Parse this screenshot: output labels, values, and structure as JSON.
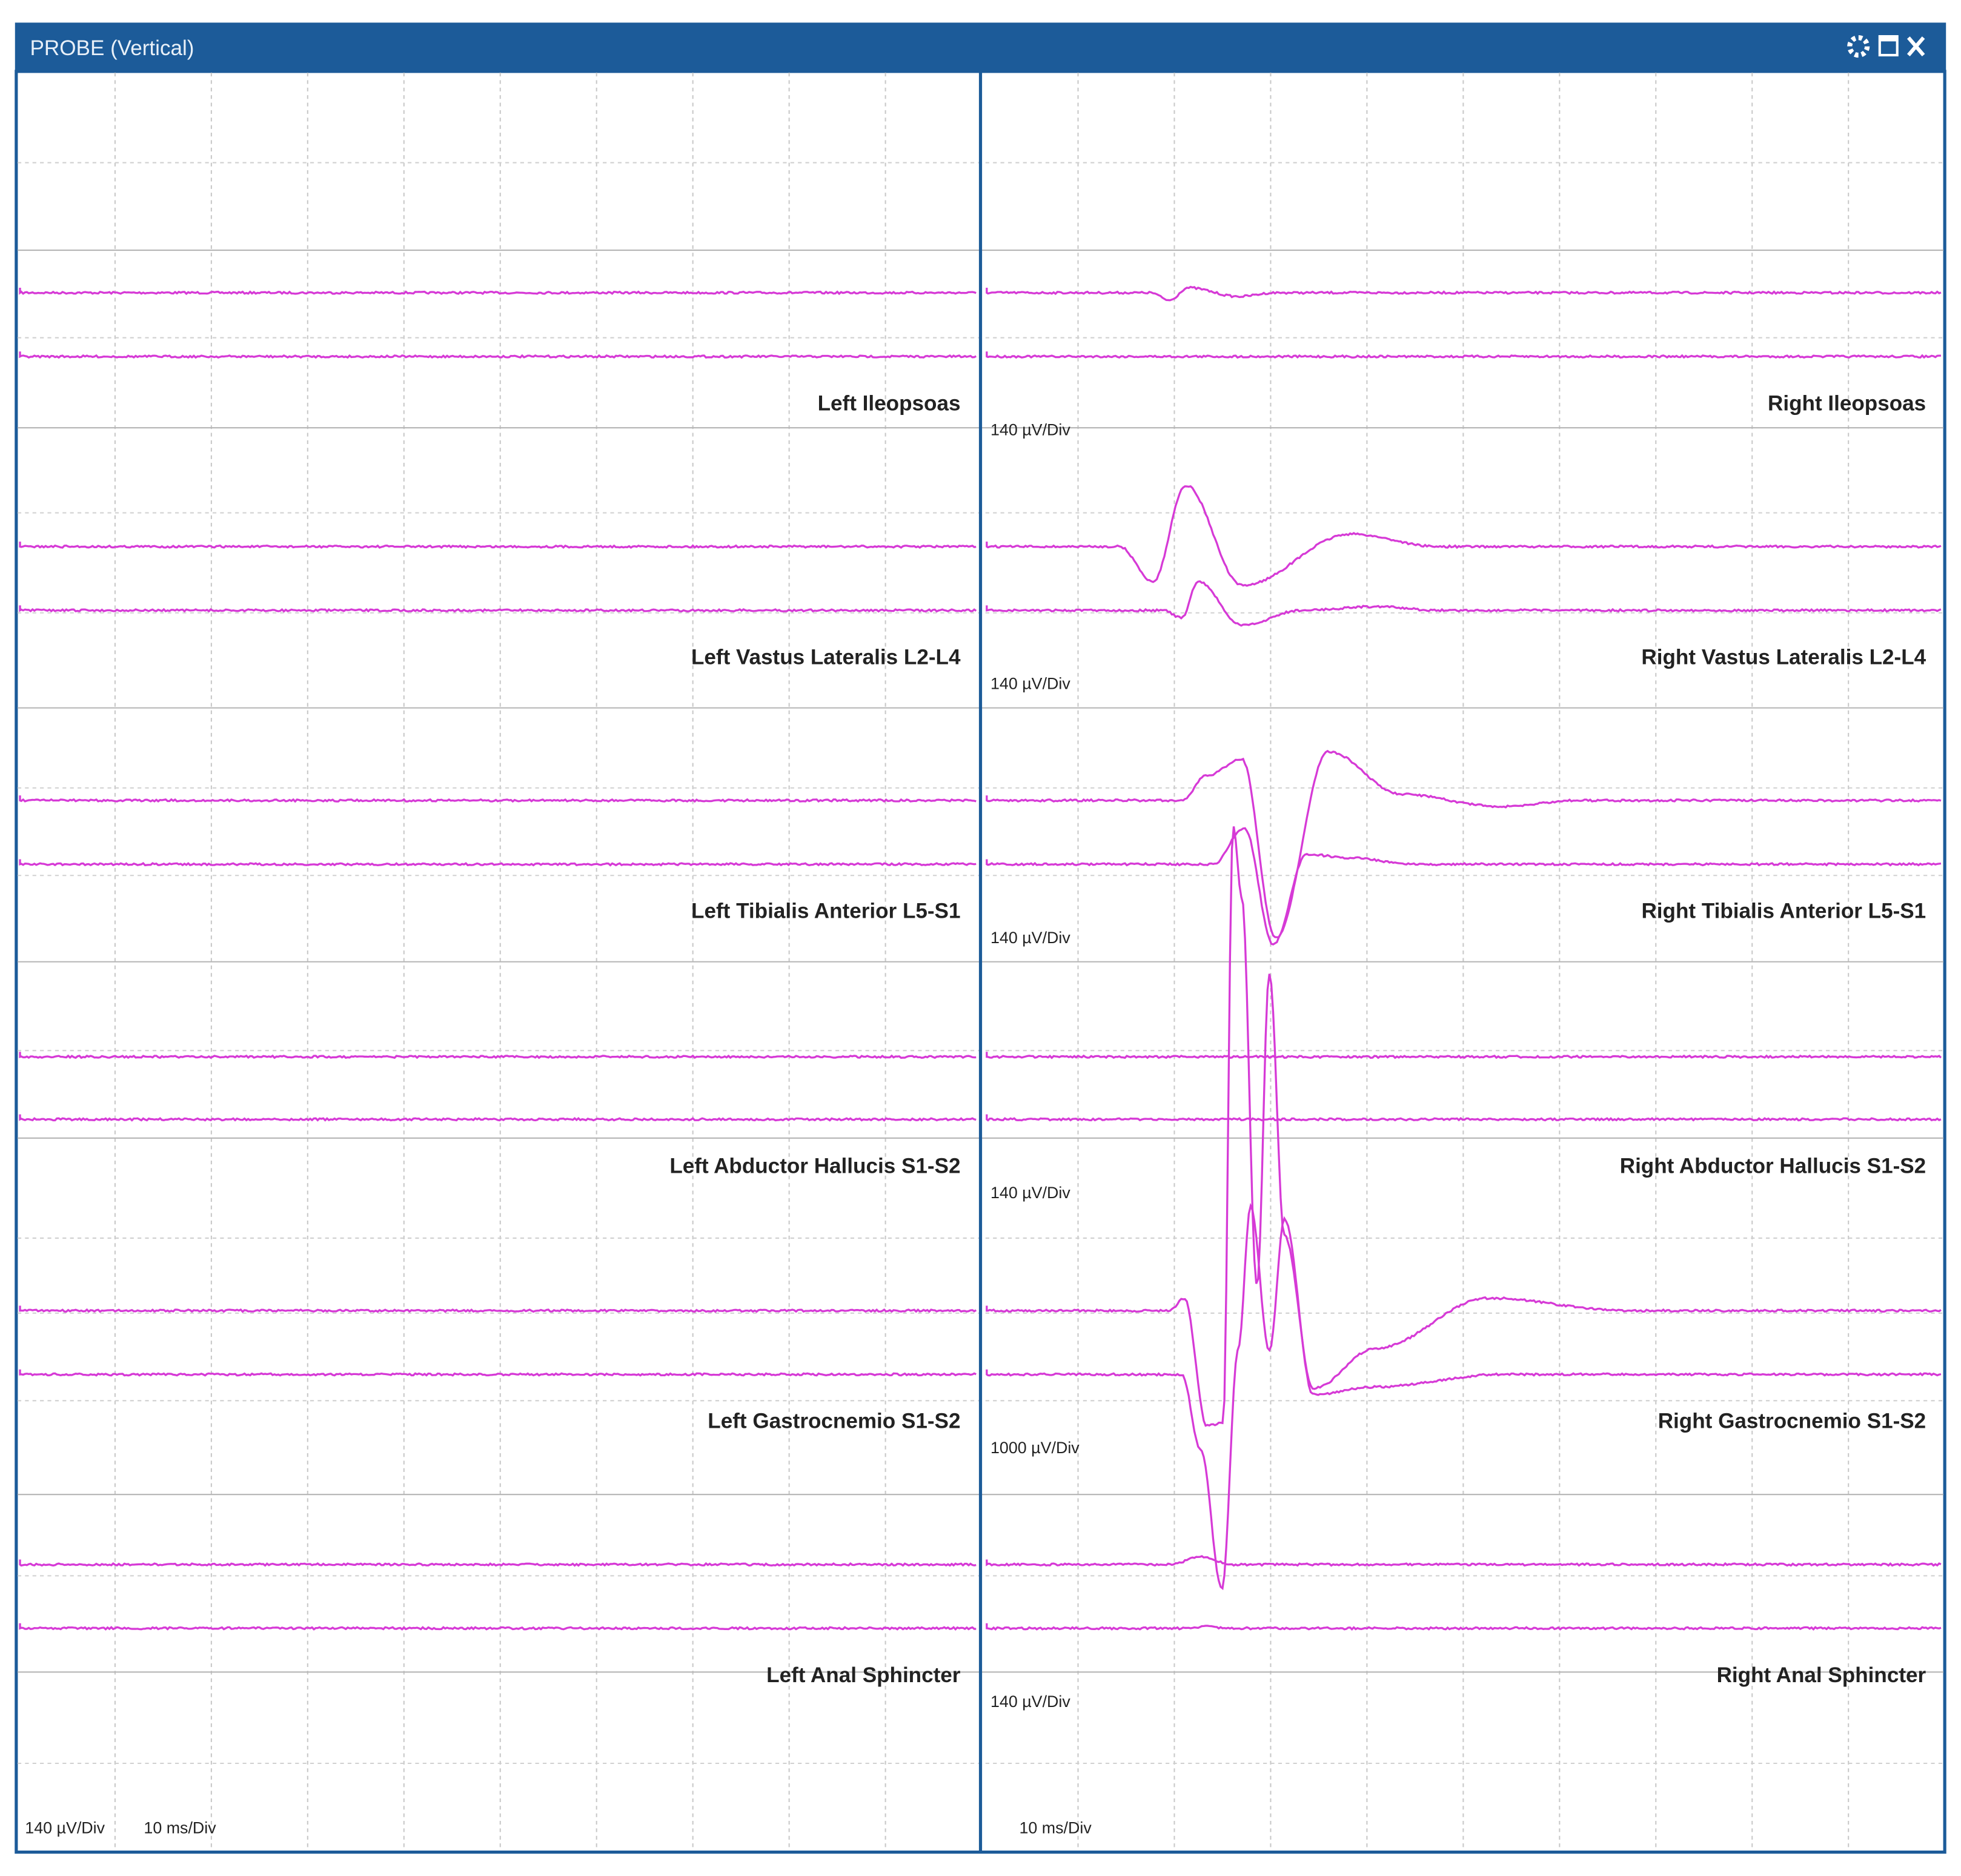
{
  "window": {
    "title": "PROBE (Vertical)"
  },
  "left": {
    "channels": [
      "Left Ileopsoas",
      "Left Vastus Lateralis L2-L4",
      "Left Tibialis Anterior L5-S1",
      "Left Abductor Hallucis S1-S2",
      "Left Gastrocnemio S1-S2",
      "Left Anal Sphincter"
    ],
    "scale": "140 µV/Div",
    "timebase": "10 ms/Div"
  },
  "right": {
    "channels": [
      "Right Ileopsoas",
      "Right Vastus Lateralis L2-L4",
      "Right Tibialis Anterior L5-S1",
      "Right Abductor Hallucis S1-S2",
      "Right Gastrocnemio S1-S2",
      "Right Anal Sphincter"
    ],
    "scales": [
      "140 µV/Div",
      "140 µV/Div",
      "140 µV/Div",
      "140 µV/Div",
      "1000 µV/Div",
      "140 µV/Div"
    ],
    "timebase": "10 ms/Div"
  }
}
